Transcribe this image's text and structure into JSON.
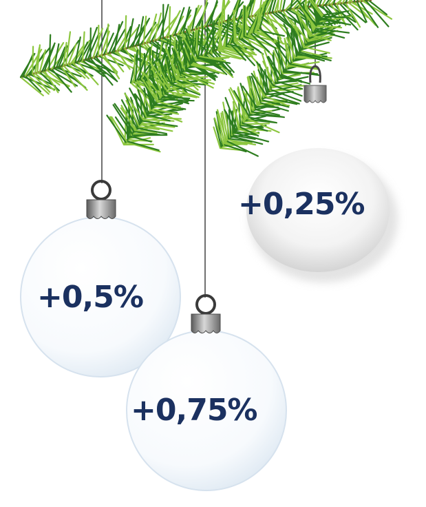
{
  "ornaments": [
    {
      "label": "+0,5%"
    },
    {
      "label": "+0,75%"
    },
    {
      "label": "+0,25%"
    }
  ],
  "colors": {
    "label_text": "#1b3160",
    "needle_dark": "#2e7d1f",
    "needle_light": "#8cc63f",
    "branch": "#8b5a2b",
    "cap": "#8a8a8a",
    "string": "#333333"
  },
  "icons": [
    "fir-branch-icon",
    "ornament-icon",
    "ornament-cap-icon",
    "hanging-hook-icon"
  ]
}
